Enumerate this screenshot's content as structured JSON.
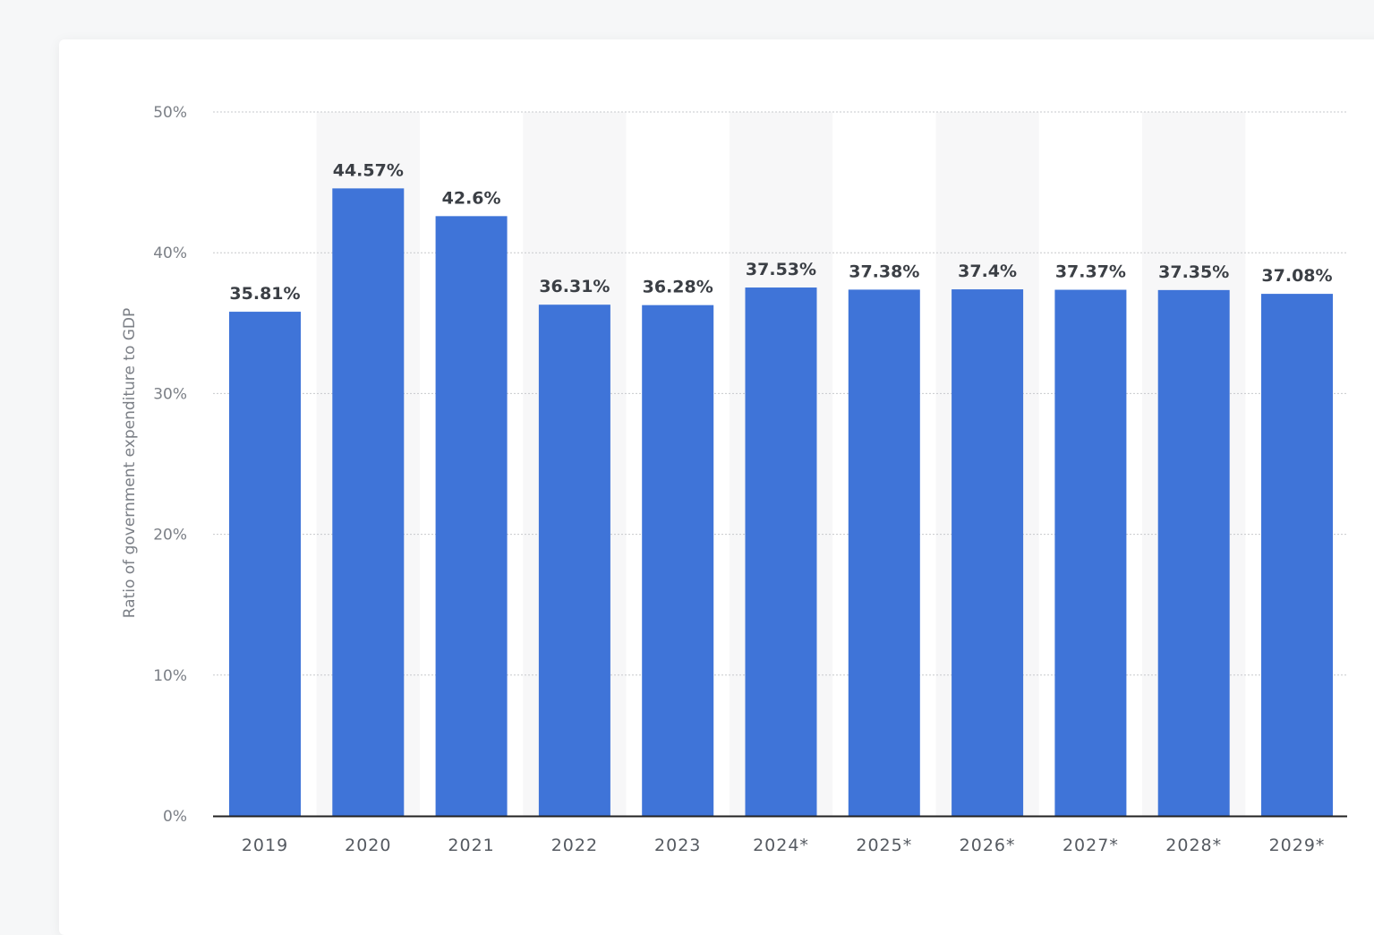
{
  "chart_data": {
    "type": "bar",
    "categories": [
      "2019",
      "2020",
      "2021",
      "2022",
      "2023",
      "2024*",
      "2025*",
      "2026*",
      "2027*",
      "2028*",
      "2029*"
    ],
    "values": [
      35.81,
      44.57,
      42.6,
      36.31,
      36.28,
      37.53,
      37.38,
      37.4,
      37.37,
      37.35,
      37.08
    ],
    "value_labels": [
      "35.81%",
      "44.57%",
      "42.6%",
      "36.31%",
      "36.28%",
      "37.53%",
      "37.38%",
      "37.4%",
      "37.37%",
      "37.35%",
      "37.08%"
    ],
    "ylabel": "Ratio of government expenditure to GDP",
    "xlabel": "",
    "ylim": [
      0,
      50
    ],
    "yticks": [
      0,
      10,
      20,
      30,
      40,
      50
    ],
    "ytick_labels": [
      "0%",
      "10%",
      "20%",
      "30%",
      "40%",
      "50%"
    ],
    "grid": true,
    "legend": "none"
  },
  "colors": {
    "bar": "#3f74d8",
    "band": "#f7f7f8",
    "grid": "#c7c9cc",
    "axis": "#222222"
  }
}
